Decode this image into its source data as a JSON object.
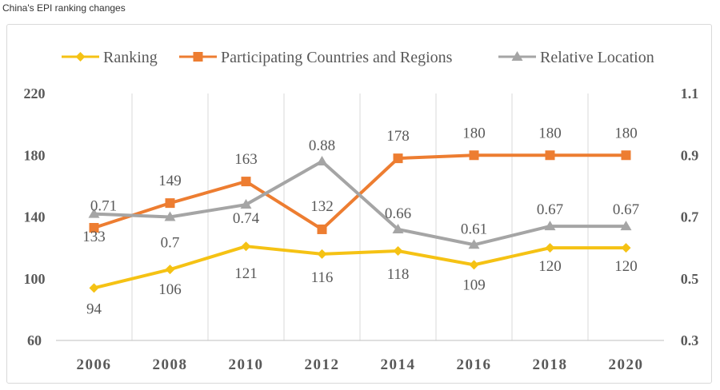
{
  "caption": "China's EPI ranking changes",
  "chart_data": {
    "type": "line",
    "categories": [
      "2006",
      "2008",
      "2010",
      "2012",
      "2014",
      "2016",
      "2018",
      "2020"
    ],
    "y_left": {
      "min": 60,
      "max": 220,
      "ticks": [
        60,
        100,
        140,
        180,
        220
      ]
    },
    "y_right": {
      "min": 0.3,
      "max": 1.1,
      "ticks": [
        "0.3",
        "0.5",
        "0.7",
        "0.9",
        "1.1"
      ]
    },
    "grid": "vertical",
    "legend_position": "top",
    "series": [
      {
        "name": "Ranking",
        "axis": "left",
        "color": "#f5c214",
        "marker": "diamond",
        "values": [
          94,
          106,
          121,
          116,
          118,
          109,
          120,
          120
        ],
        "labels": [
          "94",
          "106",
          "121",
          "116",
          "118",
          "109",
          "120",
          "120"
        ]
      },
      {
        "name": "Participating Countries and Regions",
        "axis": "left",
        "color": "#ed7d31",
        "marker": "square",
        "values": [
          133,
          149,
          163,
          132,
          178,
          180,
          180,
          180
        ],
        "labels": [
          "133",
          "149",
          "163",
          "132",
          "178",
          "180",
          "180",
          "180"
        ]
      },
      {
        "name": "Relative Location",
        "axis": "right",
        "color": "#a5a5a5",
        "marker": "triangle",
        "values": [
          0.71,
          0.7,
          0.74,
          0.88,
          0.66,
          0.61,
          0.67,
          0.67
        ],
        "labels": [
          "0.71",
          "0.7",
          "0.74",
          "0.88",
          "0.66",
          "0.61",
          "0.67",
          "0.67"
        ]
      }
    ]
  }
}
